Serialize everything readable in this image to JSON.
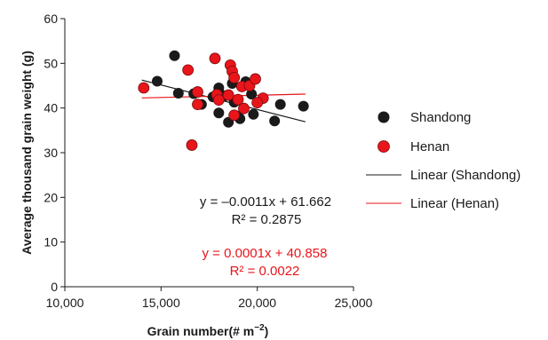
{
  "chart_data": {
    "type": "scatter",
    "xlabel": "Grain number(# m",
    "xlabel_sup": "−2",
    "xlabel_close": ")",
    "ylabel": "Average thousand grain weight (g)",
    "xlim": [
      10000,
      25000
    ],
    "ylim": [
      0,
      60
    ],
    "x_ticks": [
      10000,
      15000,
      20000,
      25000
    ],
    "x_tick_labels": [
      "10,000",
      "15,000",
      "20,000",
      "25,000"
    ],
    "y_ticks": [
      0,
      10,
      20,
      30,
      40,
      50,
      60
    ],
    "y_tick_labels": [
      "0",
      "10",
      "20",
      "30",
      "40",
      "50",
      "60"
    ],
    "grid": false,
    "legend_position": "right",
    "series": [
      {
        "name": "Shandong",
        "color": "#1a1a1a",
        "points": [
          [
            14800,
            46
          ],
          [
            15700,
            51.7
          ],
          [
            15900,
            43.3
          ],
          [
            16700,
            43.2
          ],
          [
            17100,
            40.8
          ],
          [
            17700,
            42.5
          ],
          [
            18000,
            43.8
          ],
          [
            18000,
            44.5
          ],
          [
            18000,
            38.9
          ],
          [
            18300,
            42.7
          ],
          [
            18500,
            36.8
          ],
          [
            18700,
            45.5
          ],
          [
            18800,
            41.3
          ],
          [
            19000,
            38.2
          ],
          [
            19100,
            37.6
          ],
          [
            19400,
            45.9
          ],
          [
            19700,
            43.1
          ],
          [
            19800,
            38.6
          ],
          [
            20900,
            37.1
          ],
          [
            21200,
            40.8
          ],
          [
            22400,
            40.4
          ]
        ]
      },
      {
        "name": "Henan",
        "color": "#e8151b",
        "points": [
          [
            14100,
            44.5
          ],
          [
            16400,
            48.5
          ],
          [
            16600,
            31.7
          ],
          [
            16900,
            43.6
          ],
          [
            16900,
            40.8
          ],
          [
            17800,
            51.1
          ],
          [
            17900,
            43
          ],
          [
            18000,
            41.8
          ],
          [
            18500,
            42.9
          ],
          [
            18600,
            49.6
          ],
          [
            18700,
            48.2
          ],
          [
            18800,
            46.8
          ],
          [
            18800,
            38.4
          ],
          [
            19000,
            41.9
          ],
          [
            19200,
            44.8
          ],
          [
            19300,
            39.9
          ],
          [
            19600,
            45
          ],
          [
            19900,
            46.5
          ],
          [
            20300,
            42.2
          ],
          [
            20000,
            41.2
          ]
        ]
      }
    ],
    "trendlines": [
      {
        "name": "Linear (Shandong)",
        "color": "#1a1a1a",
        "slope": -0.0011,
        "intercept": 61.662,
        "x_range": [
          14000,
          22500
        ],
        "equation": "y = –0.0011x + 61.662",
        "r2": "R² = 0.2875"
      },
      {
        "name": "Linear (Henan)",
        "color": "#e8151b",
        "slope": 0.0001,
        "intercept": 40.858,
        "x_range": [
          14000,
          22500
        ],
        "equation": "y = 0.0001x + 40.858",
        "r2": "R² = 0.0022"
      }
    ]
  }
}
